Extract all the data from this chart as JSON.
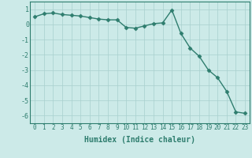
{
  "x": [
    0,
    1,
    2,
    3,
    4,
    5,
    6,
    7,
    8,
    9,
    10,
    11,
    12,
    13,
    14,
    15,
    16,
    17,
    18,
    19,
    20,
    21,
    22,
    23
  ],
  "y": [
    0.5,
    0.7,
    0.75,
    0.65,
    0.6,
    0.55,
    0.45,
    0.35,
    0.3,
    0.3,
    -0.2,
    -0.25,
    -0.1,
    0.05,
    0.1,
    0.95,
    -0.6,
    -1.55,
    -2.1,
    -3.0,
    -3.5,
    -4.4,
    -5.75,
    -5.85
  ],
  "line_color": "#2e7d6e",
  "marker": "D",
  "marker_size": 2.5,
  "linewidth": 1.0,
  "xlabel": "Humidex (Indice chaleur)",
  "ylim": [
    -6.5,
    1.5
  ],
  "xlim": [
    -0.5,
    23.5
  ],
  "yticks": [
    1,
    0,
    -1,
    -2,
    -3,
    -4,
    -5,
    -6
  ],
  "xtick_labels": [
    "0",
    "1",
    "2",
    "3",
    "4",
    "5",
    "6",
    "7",
    "8",
    "9",
    "10",
    "11",
    "12",
    "13",
    "14",
    "15",
    "16",
    "17",
    "18",
    "19",
    "20",
    "21",
    "22",
    "23"
  ],
  "bg_color": "#cceae8",
  "grid_color": "#a8d0ce",
  "axes_color": "#2e7d6e",
  "label_fontsize": 5.5,
  "xlabel_fontsize": 7.0
}
